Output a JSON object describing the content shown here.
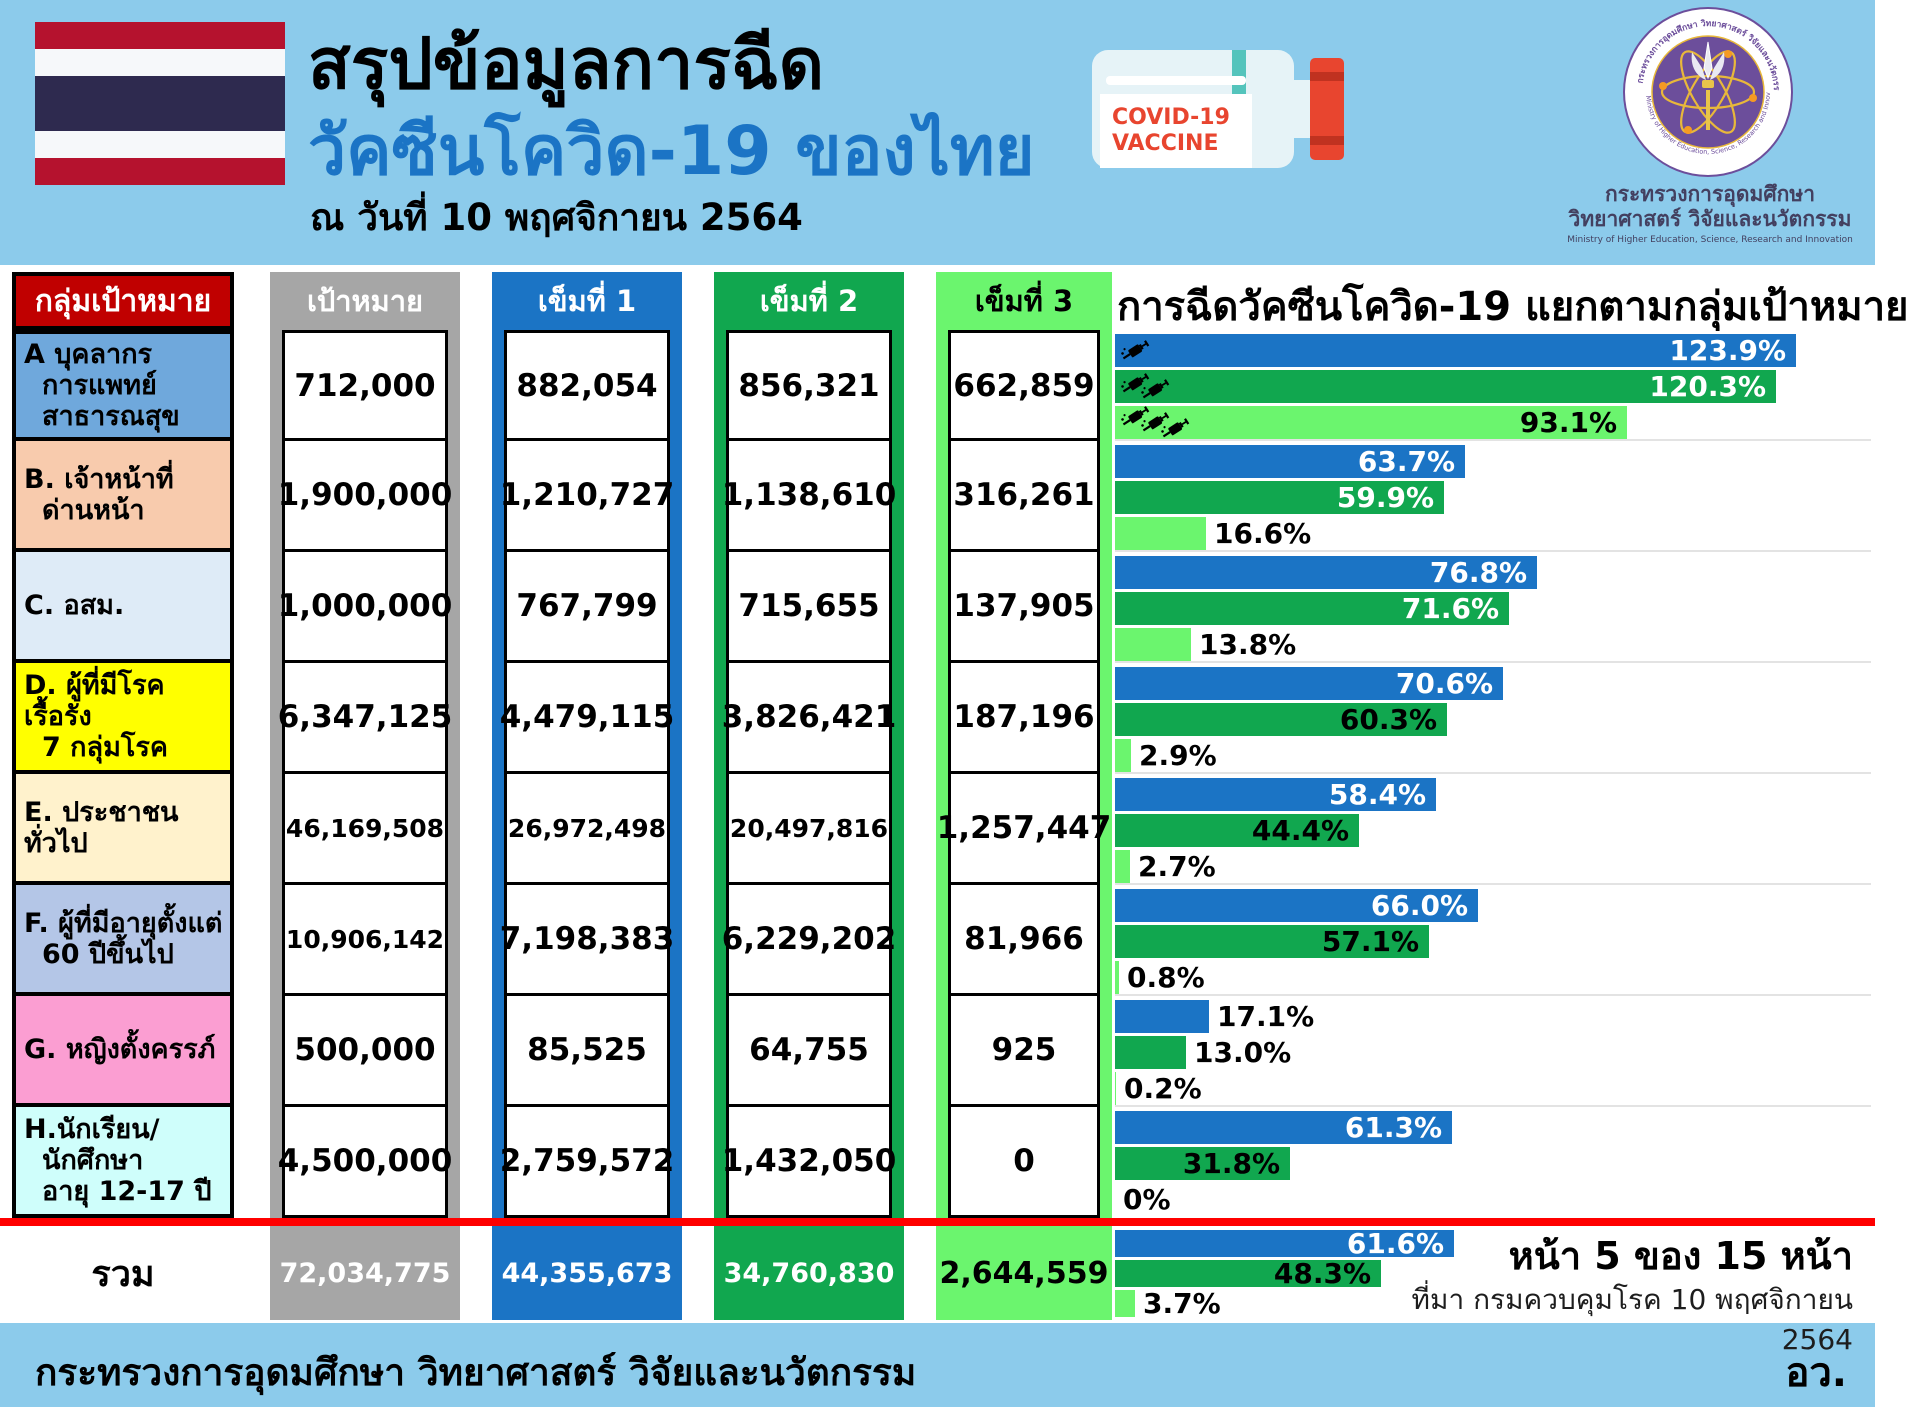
{
  "header": {
    "title_black": "สรุปข้อมูลการฉีด",
    "title_blue": "วัคซีนโควิด-19 ของไทย",
    "date": "ณ วันที่ 10 พฤศจิกายน 2564",
    "vial": {
      "line1": "COVID-19",
      "line2": "VACCINE"
    },
    "logo": {
      "ring_text_th": "กระทรวงการอุดมศึกษา วิทยาศาสตร์ วิจัยและนวัตกรรม",
      "ring_text_en": "Ministry of Higher Education, Science, Research and Innovation",
      "caption_line1": "กระทรวงการอุดมศึกษา",
      "caption_line2": "วิทยาศาสตร์ วิจัยและนวัตกรรม",
      "caption_line3": "Ministry of Higher Education, Science, Research and Innovation"
    }
  },
  "table": {
    "headers": {
      "group": "กลุ่มเป้าหมาย",
      "target": "เป้าหมาย",
      "dose1": "เข็มที่ 1",
      "dose2": "เข็มที่ 2",
      "dose3": "เข็มที่ 3"
    },
    "column_colors": {
      "target": "#A6A6A6",
      "dose1": "#1B74C5",
      "dose2": "#11A74F",
      "dose3": "#6BF56E"
    },
    "rows": [
      {
        "label_lines": [
          "A บุคลากร",
          "การแพทย์",
          "สาธารณสุข"
        ],
        "row_color": "#6FA8DC",
        "target": "712,000",
        "dose1": "882,054",
        "dose2": "856,321",
        "dose3": "662,859"
      },
      {
        "label_lines": [
          "B. เจ้าหน้าที่",
          "ด่านหน้า"
        ],
        "row_color": "#F8CBAD",
        "target": "1,900,000",
        "dose1": "1,210,727",
        "dose2": "1,138,610",
        "dose3": "316,261"
      },
      {
        "label_lines": [
          "C. อสม."
        ],
        "row_color": "#DEEBF7",
        "target": "1,000,000",
        "dose1": "767,799",
        "dose2": "715,655",
        "dose3": "137,905"
      },
      {
        "label_lines": [
          "D. ผู้ที่มีโรคเรื้อรัง",
          "7 กลุ่มโรค"
        ],
        "row_color": "#FFFF00",
        "target": "6,347,125",
        "dose1": "4,479,115",
        "dose2": "3,826,421",
        "dose3": "187,196"
      },
      {
        "label_lines": [
          "E. ประชาชนทั่วไป"
        ],
        "row_color": "#FFF2CC",
        "target": "46,169,508",
        "dose1": "26,972,498",
        "dose2": "20,497,816",
        "dose3": "1,257,447"
      },
      {
        "label_lines": [
          "F. ผู้ที่มีอายุตั้งแต่",
          "60 ปีขึ้นไป"
        ],
        "row_color": "#B4C6E7",
        "target": "10,906,142",
        "dose1": "7,198,383",
        "dose2": "6,229,202",
        "dose3": "81,966"
      },
      {
        "label_lines": [
          "G. หญิงตั้งครรภ์"
        ],
        "row_color": "#FB9ED2",
        "target": "500,000",
        "dose1": "85,525",
        "dose2": "64,755",
        "dose3": "925"
      },
      {
        "label_lines": [
          "H.นักเรียน/",
          "นักศึกษา",
          "อายุ 12-17 ปี"
        ],
        "row_color": "#CFFEFB",
        "target": "4,500,000",
        "dose1": "2,759,572",
        "dose2": "1,432,050",
        "dose3": "0"
      }
    ],
    "total": {
      "label": "รวม",
      "target": "72,034,775",
      "dose1": "44,355,673",
      "dose2": "34,760,830",
      "dose3": "2,644,559"
    }
  },
  "chart_data": {
    "type": "bar",
    "orientation": "horizontal",
    "title": "การฉีดวัคซีนโควิด-19 แยกตามกลุ่มเป้าหมาย",
    "categories": [
      "A บุคลากรการแพทย์ สาธารณสุข",
      "B. เจ้าหน้าที่ด่านหน้า",
      "C. อสม.",
      "D. ผู้ที่มีโรคเรื้อรัง 7 กลุ่มโรค",
      "E. ประชาชนทั่วไป",
      "F. ผู้ที่มีอายุตั้งแต่ 60 ปีขึ้นไป",
      "G. หญิงตั้งครรภ์",
      "H.นักเรียน/นักศึกษา อายุ 12-17 ปี",
      "รวม"
    ],
    "series": [
      {
        "name": "เข็มที่ 1",
        "color": "#1B74C5",
        "values": [
          123.9,
          63.7,
          76.8,
          70.6,
          58.4,
          66.0,
          17.1,
          61.3,
          61.6
        ],
        "labels": [
          "123.9%",
          "63.7%",
          "76.8%",
          "70.6%",
          "58.4%",
          "66.0%",
          "17.1%",
          "61.3%",
          "61.6%"
        ]
      },
      {
        "name": "เข็มที่ 2",
        "color": "#11A74F",
        "values": [
          120.3,
          59.9,
          71.6,
          60.3,
          44.4,
          57.1,
          13.0,
          31.8,
          48.3
        ],
        "labels": [
          "120.3%",
          "59.9%",
          "71.6%",
          "60.3%",
          "44.4%",
          "57.1%",
          "13.0%",
          "31.8%",
          "48.3%"
        ]
      },
      {
        "name": "เข็มที่ 3",
        "color": "#6BF56E",
        "values": [
          93.1,
          16.6,
          13.8,
          2.9,
          2.7,
          0.8,
          0.2,
          0,
          3.7
        ],
        "labels": [
          "93.1%",
          "16.6%",
          "13.8%",
          "2.9%",
          "2.7%",
          "0.8%",
          "0.2%",
          "0%",
          "3.7%"
        ]
      }
    ],
    "xlim": [
      0,
      137.5
    ],
    "grid": false,
    "value_labels": "at bar end"
  },
  "page_info": {
    "page_label": "หน้า 5 ของ 15 หน้า",
    "source": "ที่มา กรมควบคุมโรค 10 พฤศจิกายน 2564"
  },
  "footer": {
    "ministry": "กระทรวงการอุดมศึกษา วิทยาศาสตร์ วิจัยและนวัตกรรม",
    "abbr": "อว."
  }
}
